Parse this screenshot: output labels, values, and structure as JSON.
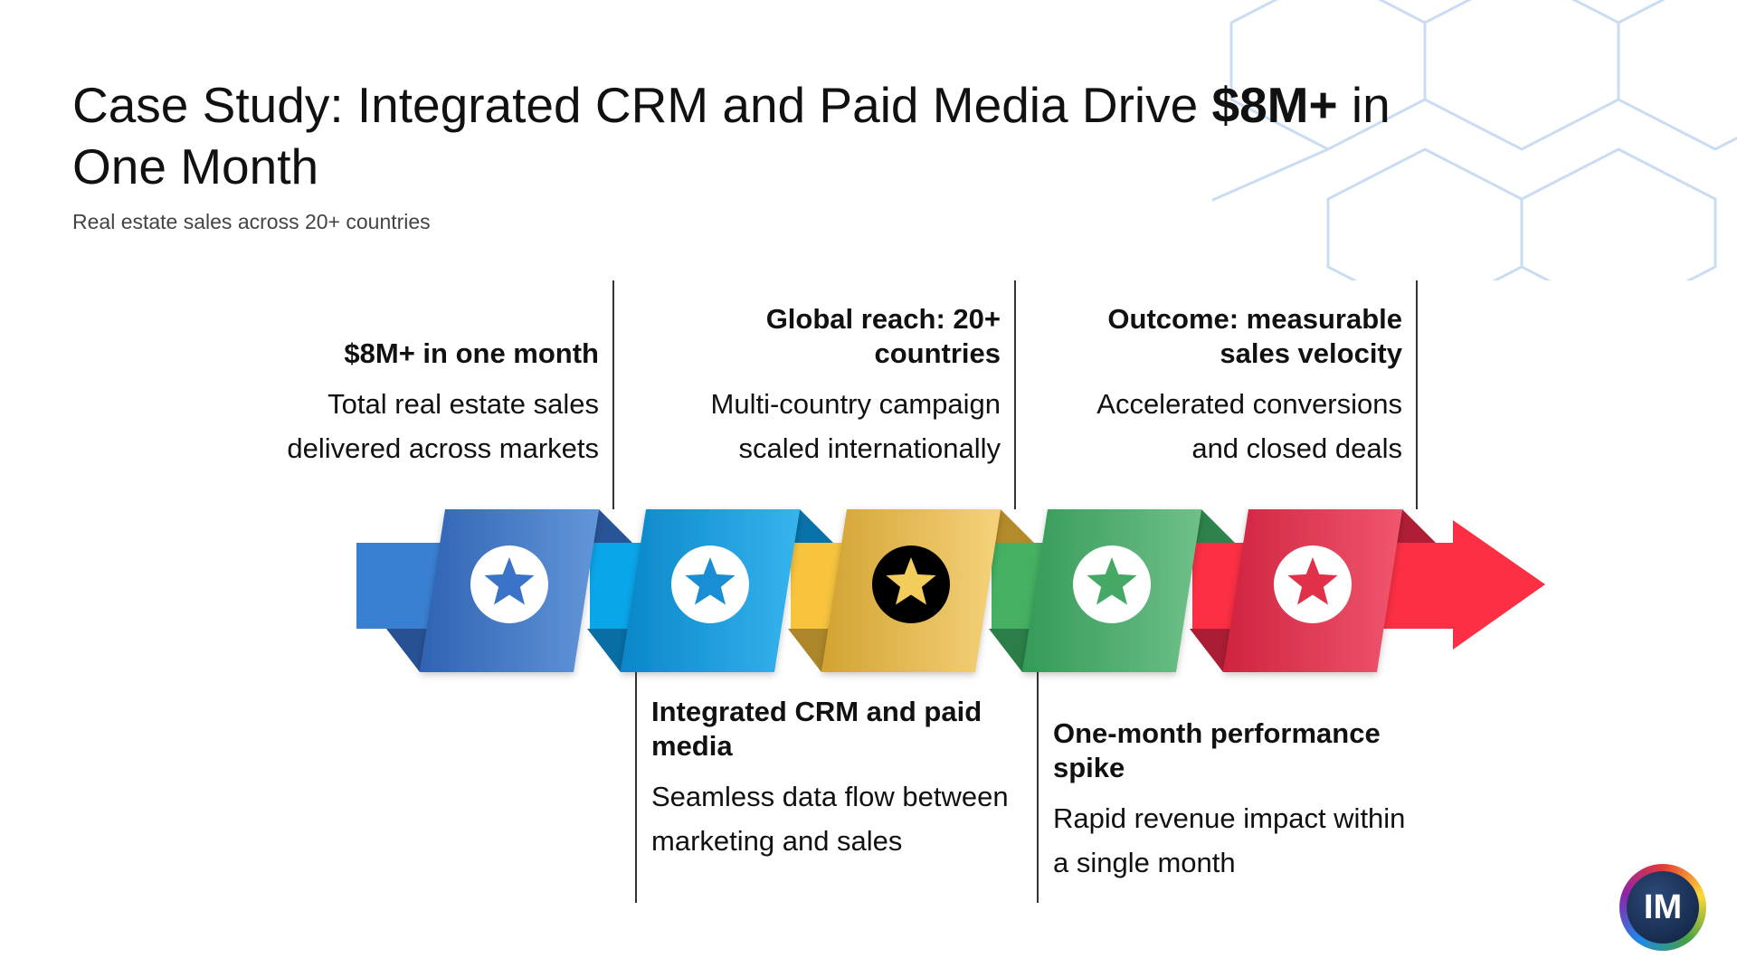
{
  "header": {
    "title_pre": "Case Study: Integrated CRM and Paid Media Drive ",
    "title_bold": "$8M+",
    "title_post": " in One Month",
    "subtitle": "Real estate sales across 20+ countries"
  },
  "steps": [
    {
      "heading": "$8M+ in one month",
      "description": "Total real estate sales delivered across markets",
      "position": "top",
      "color_dark": "#2f63b3",
      "color_light": "#6296d8",
      "color_band": "#3a80d2",
      "star_icon": "star-icon",
      "star_color": "#3a73c8",
      "circle_color": "#ffffff"
    },
    {
      "heading": "Integrated CRM and paid media",
      "description": "Seamless data flow between marketing and sales",
      "position": "bottom",
      "color_dark": "#0a86c8",
      "color_light": "#36b4ee",
      "color_band": "#0aa6ea",
      "star_icon": "star-icon",
      "star_color": "#1a8ed4",
      "circle_color": "#ffffff"
    },
    {
      "heading": "Global reach: 20+ countries",
      "description": "Multi-country campaign scaled internationally",
      "position": "top",
      "color_dark": "#d2a332",
      "color_light": "#f5d27a",
      "color_band": "#f8c43e",
      "star_icon": "star-icon",
      "star_color": "#f3cd5c",
      "circle_color": "#000000"
    },
    {
      "heading": "One-month performance spike",
      "description": "Rapid revenue impact within a single month",
      "position": "bottom",
      "color_dark": "#359a58",
      "color_light": "#6fc08a",
      "color_band": "#45b062",
      "star_icon": "star-icon",
      "star_color": "#45a865",
      "circle_color": "#ffffff"
    },
    {
      "heading": "Outcome: measurable sales velocity",
      "description": "Accelerated conversions and closed deals",
      "position": "top",
      "color_dark": "#cf2340",
      "color_light": "#f0566e",
      "color_band": "#fc2f44",
      "star_icon": "star-icon",
      "star_color": "#e0304a",
      "circle_color": "#ffffff"
    }
  ],
  "arrow": {
    "color": "#fc2f44",
    "icon": "arrow-right-icon"
  },
  "logo": {
    "text": "IM",
    "icon": "im-logo-icon"
  },
  "background": {
    "pattern": "hexagon-pattern",
    "color": "#c9dcf1"
  }
}
